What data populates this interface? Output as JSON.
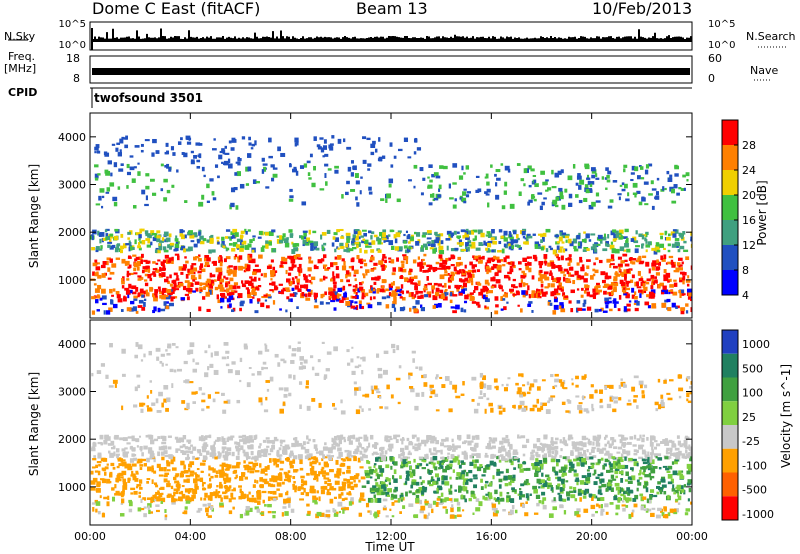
{
  "header": {
    "radar": "Dome C East (fitACF)",
    "beam": "Beam 13",
    "date": "10/Feb/2013"
  },
  "strip_labels": {
    "nsky": "N.Sky",
    "nsky_ticks": [
      "10^5",
      "10^0"
    ],
    "nsearch": "N.Search",
    "nsearch_ticks": [
      "10^5",
      "10^0"
    ],
    "freq": "Freq.",
    "freq_unit": "[MHz]",
    "freq_ticks": [
      "18",
      "8"
    ],
    "nave": "Nave",
    "nave_ticks": [
      "60",
      "0"
    ],
    "cpid": "CPID",
    "cpid_value": "twofsound 3501"
  },
  "chart_data": [
    {
      "type": "heatmap",
      "title": "Power",
      "ylabel": "Slant Range [km]",
      "xlabel": "Time UT",
      "x_ticks": [
        "00:00",
        "04:00",
        "08:00",
        "12:00",
        "16:00",
        "20:00",
        "00:00"
      ],
      "y_ticks": [
        1000,
        2000,
        3000,
        4000
      ],
      "ylim": [
        200,
        4500
      ],
      "colorbar": {
        "label": "Power [dB]",
        "ticks": [
          "28",
          "24",
          "20",
          "16",
          "12",
          "8",
          "4"
        ],
        "colors": [
          "#0000ff",
          "#2050c0",
          "#40a080",
          "#40c040",
          "#f0d000",
          "#ff8000",
          "#ff0000"
        ]
      }
    },
    {
      "type": "heatmap",
      "title": "Velocity",
      "ylabel": "Slant Range [km]",
      "xlabel": "Time UT",
      "x_ticks": [
        "00:00",
        "04:00",
        "08:00",
        "12:00",
        "16:00",
        "20:00",
        "00:00"
      ],
      "y_ticks": [
        1000,
        2000,
        3000,
        4000
      ],
      "ylim": [
        200,
        4500
      ],
      "colorbar": {
        "label": "Velocity [m s^-1]",
        "ticks": [
          "1000",
          "500",
          "100",
          "25",
          "-25",
          "-100",
          "-500",
          "-1000"
        ],
        "colors": [
          "#2040c0",
          "#208060",
          "#40a040",
          "#80d040",
          "#c8c8c8",
          "#ffa000",
          "#ff6000",
          "#ff0000"
        ]
      }
    }
  ]
}
